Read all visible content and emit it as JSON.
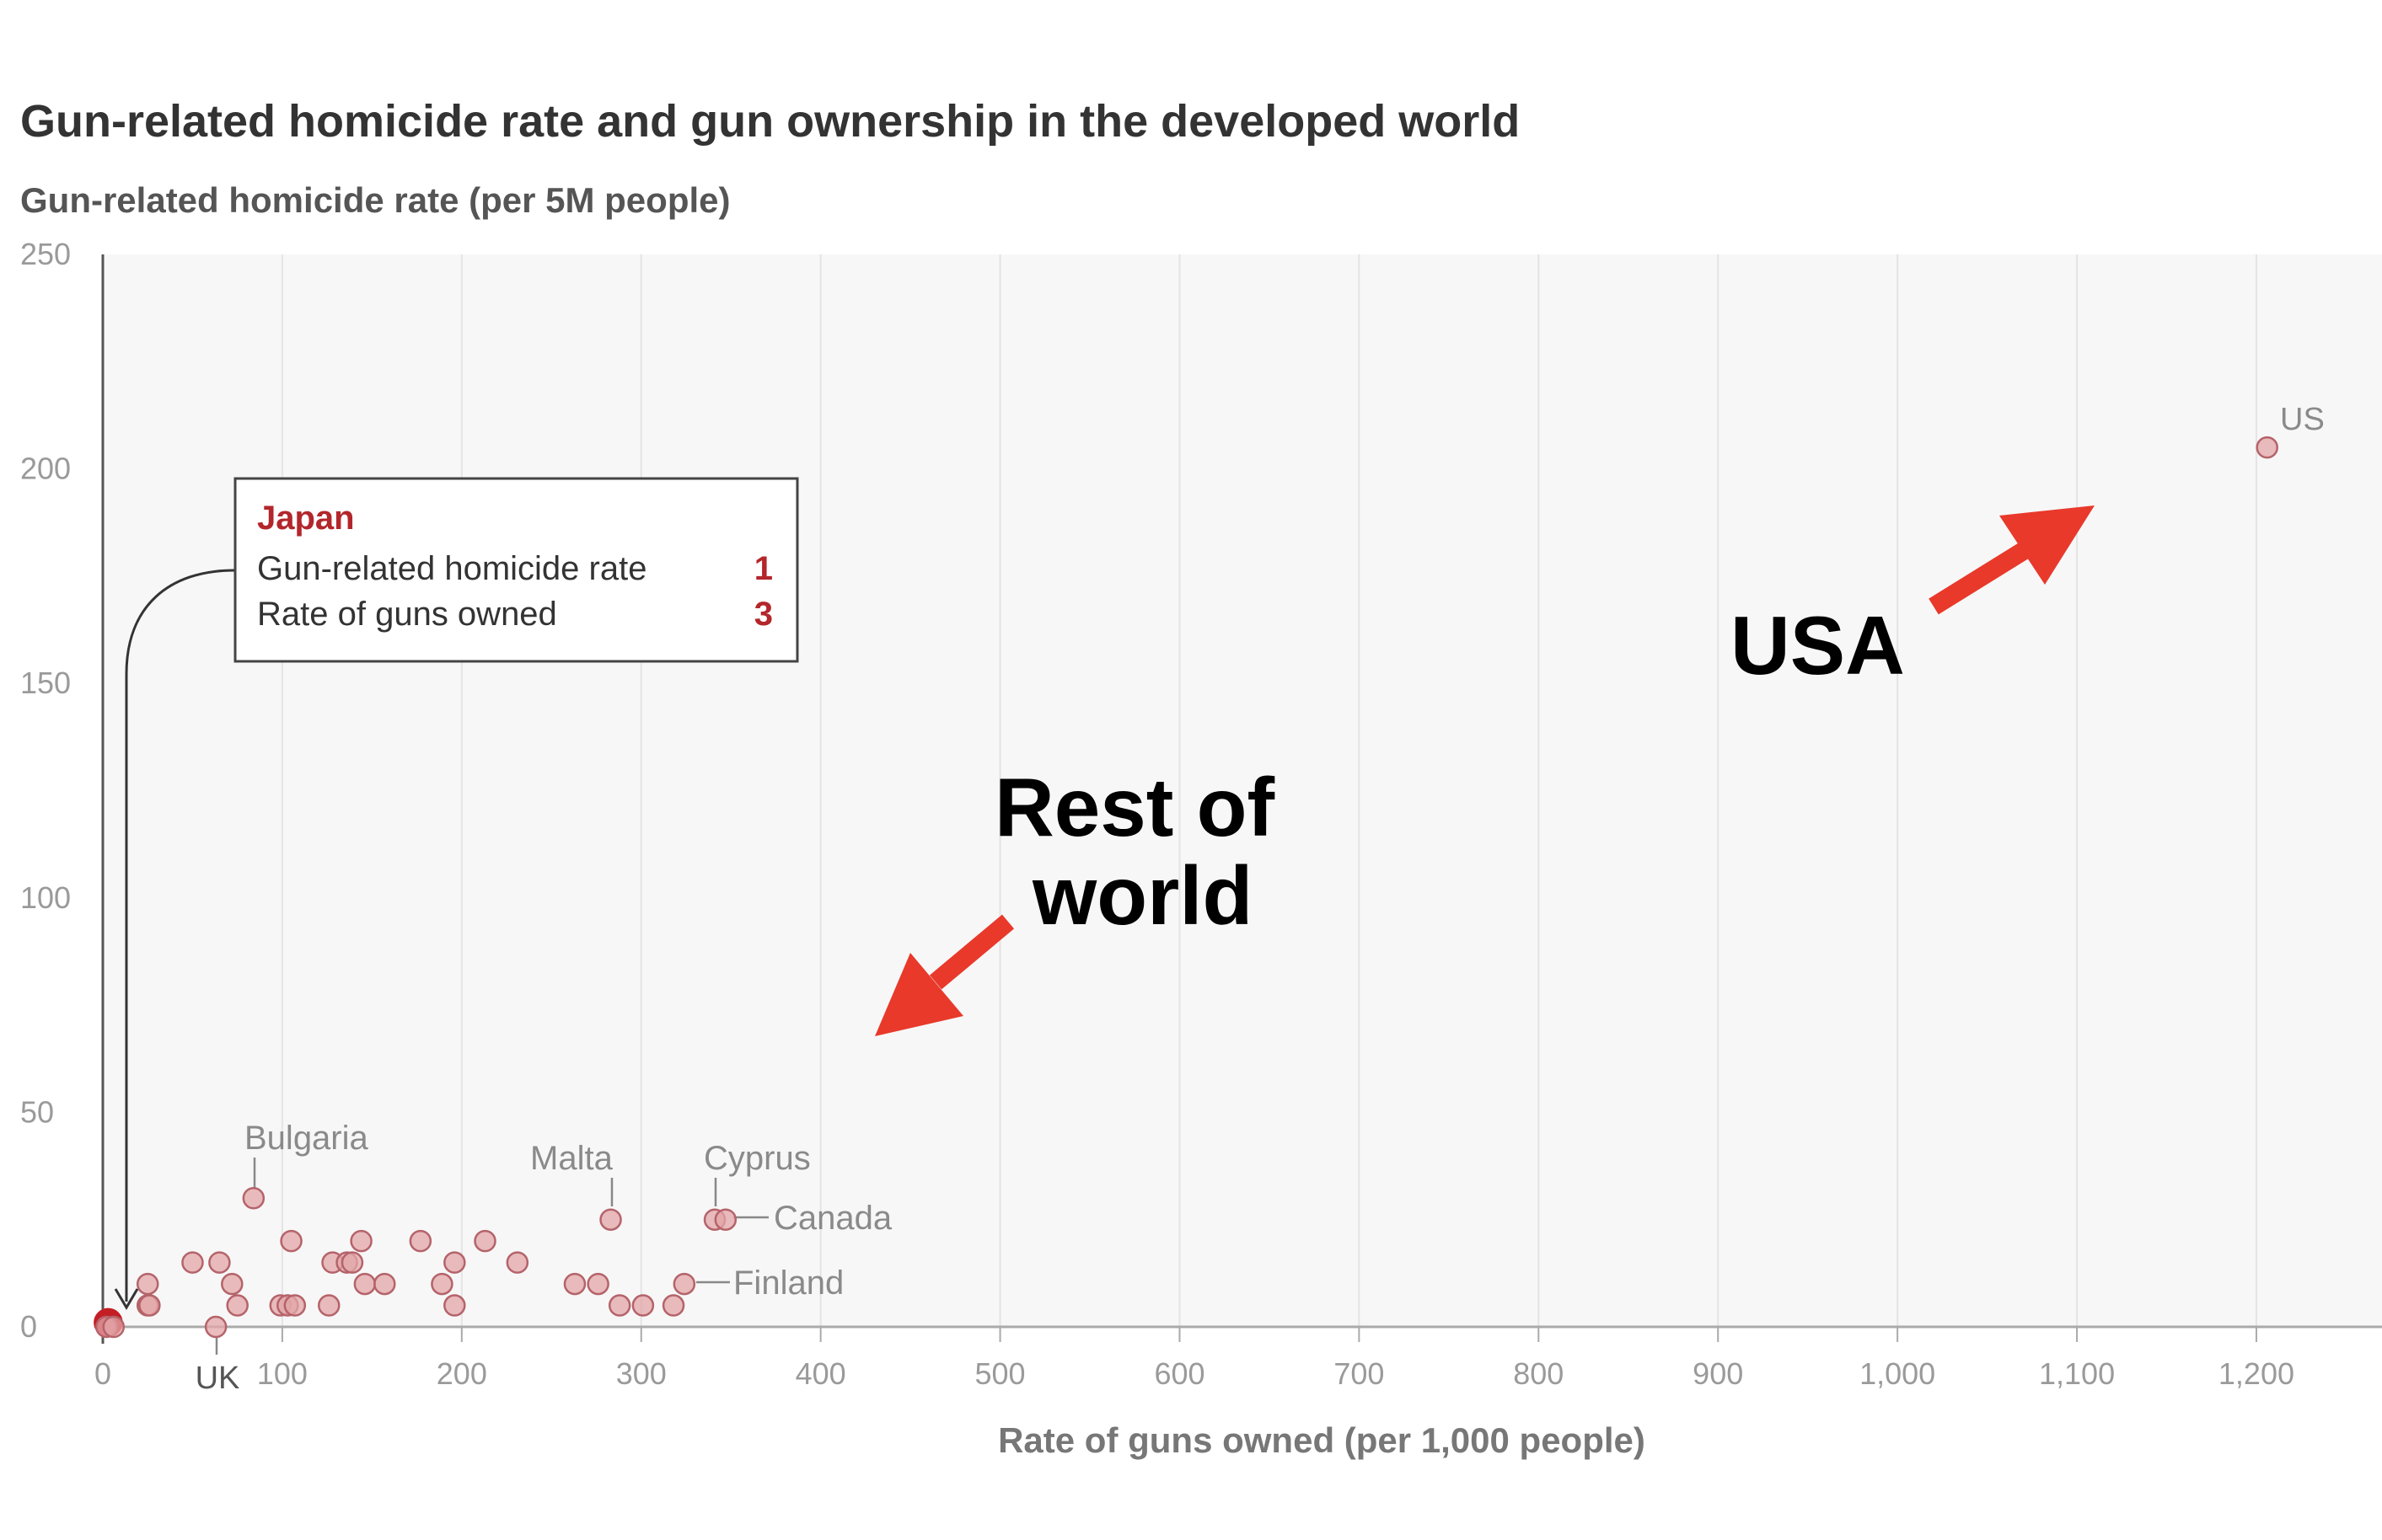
{
  "header": {
    "title": "Gun-related homicide rate and gun ownership in the developed world",
    "subtitle": "Gun-related homicide rate (per 5M people)"
  },
  "tooltip": {
    "country": "Japan",
    "row1_label": "Gun-related homicide rate",
    "row1_value": "1",
    "row2_label": "Rate of guns owned",
    "row2_value": "3"
  },
  "annotations": {
    "usa": "USA",
    "rest_line1": "Rest of",
    "rest_line2": "world",
    "arrow_color": "#e8392b"
  },
  "colors": {
    "point_fill": "#e3a5a8",
    "point_stroke": "#b5636a",
    "highlight": "#c41e25",
    "plot_bg": "#f7f7f7"
  },
  "chart_data": {
    "type": "scatter",
    "title": "Gun-related homicide rate and gun ownership in the developed world",
    "ylabel": "Gun-related homicide rate (per 5M people)",
    "xlabel": "Rate of guns owned (per 1,000 people)",
    "xlim": [
      0,
      1270
    ],
    "ylim": [
      0,
      250
    ],
    "x_ticks": [
      0,
      100,
      200,
      300,
      400,
      500,
      600,
      700,
      800,
      900,
      1000,
      1100,
      1200
    ],
    "x_tick_labels": [
      "0",
      "100",
      "200",
      "300",
      "400",
      "500",
      "600",
      "700",
      "800",
      "900",
      "1,000",
      "1,100",
      "1,200"
    ],
    "y_ticks": [
      0,
      50,
      100,
      150,
      200,
      250
    ],
    "y_tick_labels": [
      "0",
      "50",
      "100",
      "150",
      "200",
      "250"
    ],
    "grid": true,
    "highlighted": "Japan",
    "labels": {
      "us": "US",
      "uk": "UK",
      "bulgaria": "Bulgaria",
      "malta": "Malta",
      "cyprus": "Cyprus",
      "canada": "Canada",
      "finland": "Finland"
    },
    "points": [
      {
        "name": "Japan",
        "x": 3,
        "y": 1
      },
      {
        "name": "",
        "x": 2,
        "y": 0
      },
      {
        "name": "",
        "x": 6,
        "y": 0
      },
      {
        "name": "",
        "x": 25,
        "y": 10
      },
      {
        "name": "",
        "x": 25,
        "y": 5
      },
      {
        "name": "",
        "x": 26,
        "y": 5
      },
      {
        "name": "UK",
        "x": 63,
        "y": 0
      },
      {
        "name": "",
        "x": 50,
        "y": 15
      },
      {
        "name": "",
        "x": 65,
        "y": 15
      },
      {
        "name": "",
        "x": 72,
        "y": 10
      },
      {
        "name": "",
        "x": 75,
        "y": 5
      },
      {
        "name": "Bulgaria",
        "x": 84,
        "y": 30
      },
      {
        "name": "",
        "x": 99,
        "y": 5
      },
      {
        "name": "",
        "x": 103,
        "y": 5
      },
      {
        "name": "",
        "x": 105,
        "y": 20
      },
      {
        "name": "",
        "x": 107,
        "y": 5
      },
      {
        "name": "",
        "x": 126,
        "y": 5
      },
      {
        "name": "",
        "x": 128,
        "y": 15
      },
      {
        "name": "",
        "x": 136,
        "y": 15
      },
      {
        "name": "",
        "x": 139,
        "y": 15
      },
      {
        "name": "",
        "x": 144,
        "y": 20
      },
      {
        "name": "",
        "x": 146,
        "y": 10
      },
      {
        "name": "",
        "x": 157,
        "y": 10
      },
      {
        "name": "",
        "x": 177,
        "y": 20
      },
      {
        "name": "",
        "x": 189,
        "y": 10
      },
      {
        "name": "",
        "x": 196,
        "y": 15
      },
      {
        "name": "",
        "x": 196,
        "y": 5
      },
      {
        "name": "",
        "x": 213,
        "y": 20
      },
      {
        "name": "",
        "x": 231,
        "y": 15
      },
      {
        "name": "",
        "x": 263,
        "y": 10
      },
      {
        "name": "",
        "x": 276,
        "y": 10
      },
      {
        "name": "Malta",
        "x": 283,
        "y": 25
      },
      {
        "name": "",
        "x": 288,
        "y": 5
      },
      {
        "name": "",
        "x": 301,
        "y": 5
      },
      {
        "name": "",
        "x": 318,
        "y": 5
      },
      {
        "name": "Finland",
        "x": 324,
        "y": 10
      },
      {
        "name": "Cyprus",
        "x": 341,
        "y": 25
      },
      {
        "name": "Canada",
        "x": 347,
        "y": 25
      },
      {
        "name": "US",
        "x": 1206,
        "y": 205
      }
    ]
  }
}
